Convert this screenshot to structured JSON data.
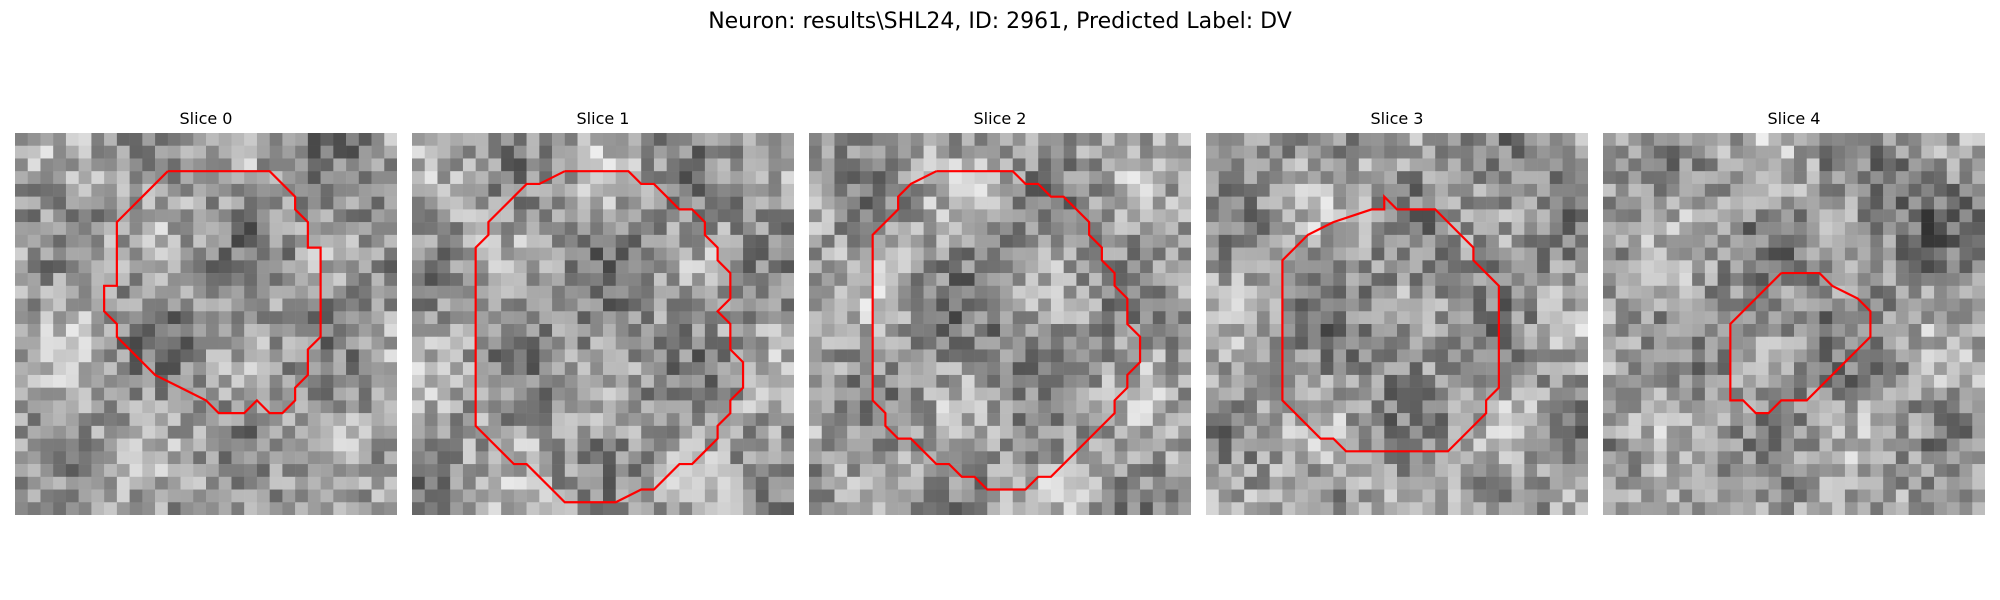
{
  "figure": {
    "title": "Neuron: results\\SHL24, ID: 2961, Predicted Label: DV"
  },
  "slices": [
    {
      "title": "Slice 0"
    },
    {
      "title": "Slice 1"
    },
    {
      "title": "Slice 2"
    },
    {
      "title": "Slice 3"
    },
    {
      "title": "Slice 4"
    }
  ],
  "colors": {
    "contour": "#ff0000",
    "colormap": "grayscale"
  }
}
